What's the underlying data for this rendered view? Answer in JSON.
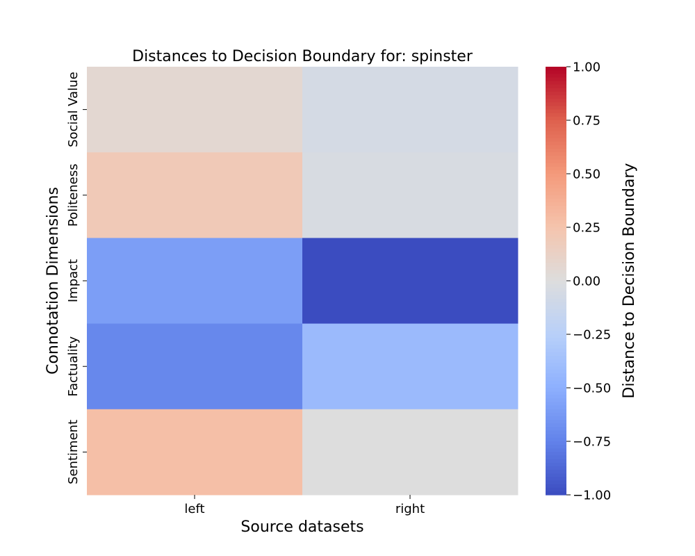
{
  "chart_data": {
    "type": "heatmap",
    "title": "Distances to Decision Boundary for: spinster",
    "xlabel": "Source datasets",
    "ylabel": "Connotation Dimensions",
    "x_categories": [
      "left",
      "right"
    ],
    "y_categories": [
      "Social Value",
      "Politeness",
      "Impact",
      "Factuality",
      "Sentiment"
    ],
    "values": [
      [
        0.06,
        -0.06
      ],
      [
        0.2,
        -0.04
      ],
      [
        -0.6,
        -1.0
      ],
      [
        -0.72,
        -0.42
      ],
      [
        0.28,
        0.0
      ]
    ],
    "colorbar": {
      "label": "Distance to Decision Boundary",
      "range": [
        -1.0,
        1.0
      ],
      "ticks": [
        "1.00",
        "0.75",
        "0.50",
        "0.25",
        "0.00",
        "−0.25",
        "−0.50",
        "−0.75",
        "−1.00"
      ],
      "colormap": "coolwarm"
    }
  }
}
